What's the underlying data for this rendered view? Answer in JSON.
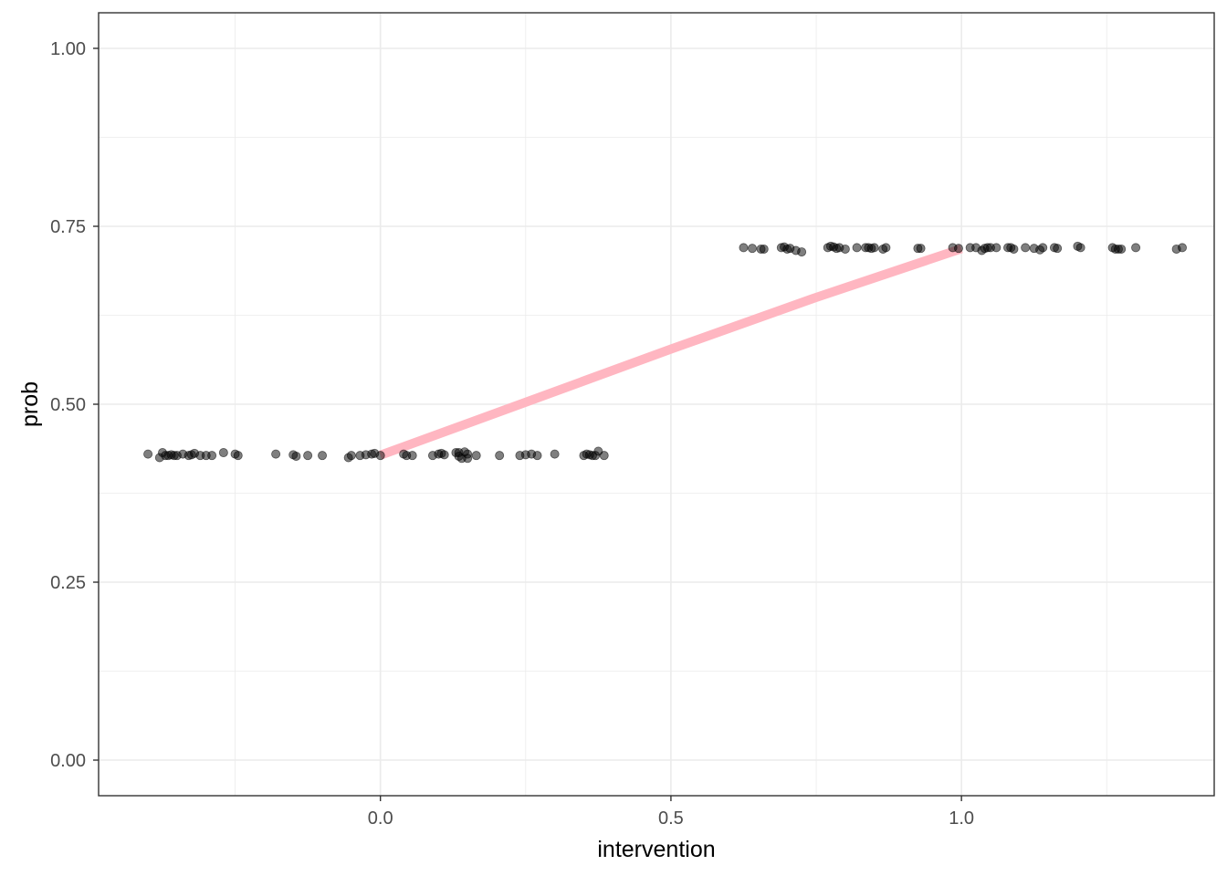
{
  "chart_data": {
    "type": "scatter",
    "title": "",
    "xlabel": "intervention",
    "ylabel": "prob",
    "xlim": [
      -0.485,
      1.435
    ],
    "ylim": [
      -0.05,
      1.05
    ],
    "x_ticks": [
      0.0,
      0.5,
      1.0
    ],
    "x_tick_labels": [
      "0.0",
      "0.5",
      "1.0"
    ],
    "x_minor_ticks": [
      -0.25,
      0.25,
      0.75,
      1.25
    ],
    "y_ticks": [
      0.0,
      0.25,
      0.5,
      0.75,
      1.0
    ],
    "y_tick_labels": [
      "0.00",
      "0.25",
      "0.50",
      "0.75",
      "1.00"
    ],
    "y_minor_ticks": [
      0.125,
      0.375,
      0.625,
      0.875
    ],
    "grid": true,
    "legend": "none",
    "colors": {
      "points": "#000000",
      "line": "#ffb6c1",
      "grid": "#ebebeb",
      "panel_border": "#333333"
    },
    "series": [
      {
        "type": "scatter",
        "x": [
          -0.4,
          -0.38,
          -0.375,
          -0.37,
          -0.365,
          -0.36,
          -0.355,
          -0.35,
          -0.34,
          -0.33,
          -0.325,
          -0.32,
          -0.31,
          -0.3,
          -0.29,
          -0.27,
          -0.25,
          -0.245,
          -0.18,
          -0.15,
          -0.145,
          -0.125,
          -0.1,
          -0.055,
          -0.05,
          -0.035,
          -0.025,
          -0.015,
          -0.01,
          0.0,
          0.04,
          0.045,
          0.055,
          0.09,
          0.1,
          0.105,
          0.11,
          0.13,
          0.135,
          0.135,
          0.14,
          0.145,
          0.15,
          0.15,
          0.165,
          0.205,
          0.24,
          0.25,
          0.26,
          0.27,
          0.3,
          0.35,
          0.355,
          0.36,
          0.365,
          0.37,
          0.375,
          0.385,
          0.625,
          0.64,
          0.655,
          0.66,
          0.69,
          0.695,
          0.7,
          0.705,
          0.715,
          0.725,
          0.77,
          0.775,
          0.78,
          0.785,
          0.79,
          0.8,
          0.82,
          0.835,
          0.84,
          0.845,
          0.85,
          0.865,
          0.87,
          0.925,
          0.93,
          0.985,
          0.995,
          1.015,
          1.025,
          1.035,
          1.04,
          1.045,
          1.05,
          1.06,
          1.08,
          1.085,
          1.09,
          1.11,
          1.125,
          1.135,
          1.14,
          1.16,
          1.165,
          1.2,
          1.205,
          1.26,
          1.265,
          1.27,
          1.275,
          1.3,
          1.37,
          1.38
        ],
        "y": [
          0.43,
          0.425,
          0.432,
          0.428,
          0.428,
          0.429,
          0.428,
          0.428,
          0.43,
          0.428,
          0.429,
          0.431,
          0.428,
          0.428,
          0.428,
          0.432,
          0.43,
          0.428,
          0.43,
          0.429,
          0.427,
          0.428,
          0.428,
          0.425,
          0.428,
          0.428,
          0.429,
          0.43,
          0.431,
          0.428,
          0.43,
          0.428,
          0.428,
          0.428,
          0.43,
          0.431,
          0.429,
          0.432,
          0.432,
          0.427,
          0.424,
          0.433,
          0.43,
          0.424,
          0.428,
          0.428,
          0.428,
          0.429,
          0.43,
          0.428,
          0.43,
          0.428,
          0.43,
          0.429,
          0.428,
          0.428,
          0.434,
          0.428,
          0.72,
          0.719,
          0.718,
          0.718,
          0.72,
          0.721,
          0.718,
          0.719,
          0.716,
          0.714,
          0.72,
          0.722,
          0.721,
          0.719,
          0.72,
          0.718,
          0.72,
          0.72,
          0.72,
          0.719,
          0.72,
          0.718,
          0.72,
          0.719,
          0.719,
          0.72,
          0.719,
          0.72,
          0.72,
          0.716,
          0.719,
          0.72,
          0.72,
          0.72,
          0.72,
          0.72,
          0.718,
          0.72,
          0.719,
          0.717,
          0.72,
          0.72,
          0.719,
          0.722,
          0.72,
          0.72,
          0.718,
          0.718,
          0.718,
          0.72,
          0.718,
          0.72
        ]
      },
      {
        "type": "line",
        "x": [
          0.0,
          0.25,
          0.5,
          0.75,
          1.0
        ],
        "y": [
          0.4285,
          0.5028,
          0.5775,
          0.6501,
          0.7185
        ]
      }
    ]
  }
}
